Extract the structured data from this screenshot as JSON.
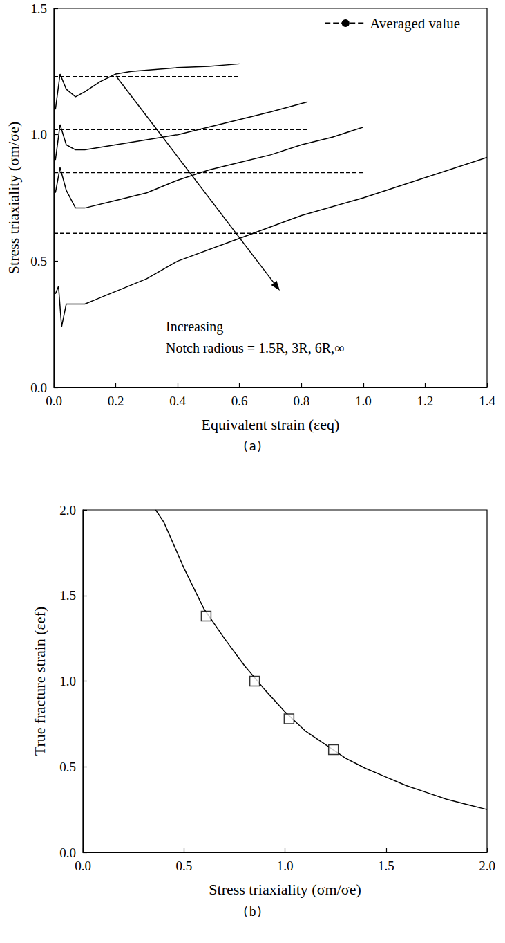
{
  "chart_data": [
    {
      "type": "line",
      "title": "(a)",
      "xlabel": "Equivalent strain (εeq)",
      "ylabel": "Stress triaxiality (σm/σe)",
      "annotations": [
        "Increasing",
        "Notch radious = 1.5R, 3R, 6R,∞"
      ],
      "legend": "upper right",
      "xlim": [
        0,
        1.4
      ],
      "xticks": [
        {
          "value": 0,
          "label": "0.0"
        },
        0.2,
        0.4,
        0.6,
        0.8,
        {
          "value": 1,
          "label": "1.0"
        },
        1.2,
        1.4
      ],
      "ylim": [
        0,
        1.5
      ],
      "yticks": [
        {
          "value": 0,
          "label": "0.0"
        },
        0.5,
        {
          "value": 1,
          "label": "1.0"
        },
        1.5
      ],
      "series": [
        {
          "color": "#000000",
          "line_style": "solid",
          "marker": "none",
          "values": [
            [
              0.005,
              1.1
            ],
            [
              0.02,
              1.24
            ],
            [
              0.04,
              1.18
            ],
            [
              0.07,
              1.15
            ],
            [
              0.1,
              1.17
            ],
            [
              0.15,
              1.21
            ],
            [
              0.2,
              1.24
            ],
            [
              0.25,
              1.25
            ],
            [
              0.3,
              1.255
            ],
            [
              0.4,
              1.265
            ],
            [
              0.5,
              1.27
            ],
            [
              0.6,
              1.28
            ]
          ]
        },
        {
          "color": "#000000",
          "line_style": "solid",
          "marker": "none",
          "values": [
            [
              0.005,
              0.9
            ],
            [
              0.02,
              1.04
            ],
            [
              0.04,
              0.96
            ],
            [
              0.07,
              0.94
            ],
            [
              0.1,
              0.94
            ],
            [
              0.2,
              0.96
            ],
            [
              0.3,
              0.98
            ],
            [
              0.4,
              1.0
            ],
            [
              0.5,
              1.03
            ],
            [
              0.6,
              1.06
            ],
            [
              0.7,
              1.09
            ],
            [
              0.82,
              1.13
            ]
          ]
        },
        {
          "color": "#000000",
          "line_style": "solid",
          "marker": "none",
          "values": [
            [
              0.005,
              0.77
            ],
            [
              0.02,
              0.87
            ],
            [
              0.04,
              0.78
            ],
            [
              0.07,
              0.71
            ],
            [
              0.1,
              0.71
            ],
            [
              0.2,
              0.74
            ],
            [
              0.3,
              0.77
            ],
            [
              0.4,
              0.82
            ],
            [
              0.5,
              0.86
            ],
            [
              0.6,
              0.89
            ],
            [
              0.7,
              0.92
            ],
            [
              0.8,
              0.96
            ],
            [
              0.9,
              0.99
            ],
            [
              1.0,
              1.03
            ]
          ]
        },
        {
          "color": "#000000",
          "line_style": "solid",
          "marker": "none",
          "values": [
            [
              0.005,
              0.37
            ],
            [
              0.015,
              0.4
            ],
            [
              0.025,
              0.24
            ],
            [
              0.04,
              0.33
            ],
            [
              0.1,
              0.33
            ],
            [
              0.14,
              0.35
            ],
            [
              0.2,
              0.38
            ],
            [
              0.3,
              0.43
            ],
            [
              0.4,
              0.5
            ],
            [
              0.6,
              0.59
            ],
            [
              0.8,
              0.68
            ],
            [
              1.0,
              0.75
            ],
            [
              1.2,
              0.83
            ],
            [
              1.4,
              0.91
            ]
          ]
        },
        {
          "name": "Averaged value",
          "color": "#000000",
          "line_style": "dashed",
          "marker": "none",
          "values": [
            [
              0,
              1.23
            ],
            [
              0.6,
              1.23
            ]
          ]
        },
        {
          "name": "Averaged value",
          "color": "#000000",
          "line_style": "dashed",
          "marker": "none",
          "values": [
            [
              0,
              1.02
            ],
            [
              0.82,
              1.02
            ]
          ]
        },
        {
          "name": "Averaged value",
          "color": "#000000",
          "line_style": "dashed",
          "marker": "none",
          "values": [
            [
              0,
              0.85
            ],
            [
              1.0,
              0.85
            ]
          ]
        },
        {
          "name": "Averaged value",
          "color": "#000000",
          "line_style": "dashed",
          "marker": "none",
          "values": [
            [
              0,
              0.61
            ],
            [
              1.4,
              0.61
            ]
          ]
        }
      ]
    },
    {
      "type": "scatter",
      "title": "(b)",
      "xlabel": "Stress triaxiality (σm/σe)",
      "ylabel": "True fracture strain (εef)",
      "xlim": [
        0,
        2
      ],
      "xticks": [
        {
          "value": 0,
          "label": "0.0"
        },
        0.5,
        {
          "value": 1,
          "label": "1.0"
        },
        1.5,
        {
          "value": 2,
          "label": "2.0"
        }
      ],
      "ylim": [
        0,
        2
      ],
      "yticks": [
        {
          "value": 0,
          "label": "0.0"
        },
        0.5,
        {
          "value": 1,
          "label": "1.0"
        },
        1.5,
        {
          "value": 2,
          "label": "2.0"
        }
      ],
      "series": [
        {
          "type": "line",
          "color": "#000000",
          "line_style": "solid",
          "marker": "none",
          "values": [
            [
              0.36,
              2.0
            ],
            [
              0.4,
              1.93
            ],
            [
              0.5,
              1.66
            ],
            [
              0.6,
              1.42
            ],
            [
              0.7,
              1.25
            ],
            [
              0.8,
              1.09
            ],
            [
              0.9,
              0.95
            ],
            [
              1.0,
              0.82
            ],
            [
              1.1,
              0.71
            ],
            [
              1.2,
              0.63
            ],
            [
              1.3,
              0.55
            ],
            [
              1.4,
              0.49
            ],
            [
              1.5,
              0.44
            ],
            [
              1.6,
              0.39
            ],
            [
              1.7,
              0.35
            ],
            [
              1.8,
              0.31
            ],
            [
              1.9,
              0.28
            ],
            [
              2.0,
              0.25
            ]
          ]
        },
        {
          "type": "scatter",
          "color": "#000000",
          "marker": "square",
          "values": [
            [
              0.61,
              1.38
            ],
            [
              0.85,
              1.0
            ],
            [
              1.02,
              0.78
            ],
            [
              1.24,
              0.6
            ]
          ]
        }
      ]
    }
  ]
}
